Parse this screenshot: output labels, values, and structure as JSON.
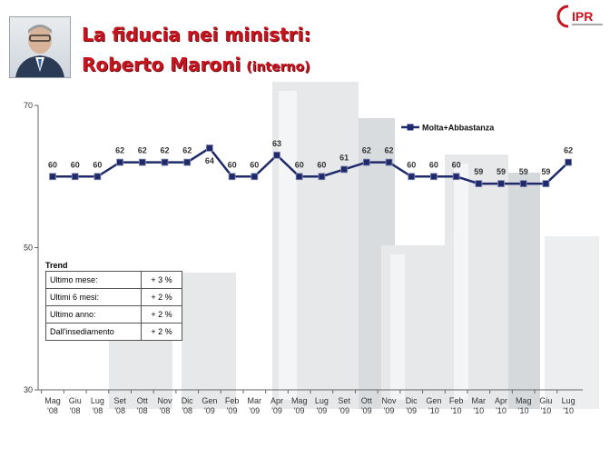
{
  "header": {
    "title_line1": "La fiducia nei ministri:",
    "title_line2": "Roberto Maroni",
    "title_role": "(interno)",
    "logo_text": "IPR"
  },
  "chart_data": {
    "type": "line",
    "title": "",
    "xlabel": "",
    "ylabel": "",
    "ylim": [
      30,
      70
    ],
    "yticks": [
      "70",
      "50",
      "30"
    ],
    "legend_position": "top-right",
    "series_color": "#1f2a6b",
    "categories": [
      [
        "Mag",
        "'08"
      ],
      [
        "Giu",
        "'08"
      ],
      [
        "Lug",
        "'08"
      ],
      [
        "Set",
        "'08"
      ],
      [
        "Ott",
        "'08"
      ],
      [
        "Nov",
        "'08"
      ],
      [
        "Dic",
        "'08"
      ],
      [
        "Gen",
        "'09"
      ],
      [
        "Feb",
        "'09"
      ],
      [
        "Mar",
        "'09"
      ],
      [
        "Apr",
        "'09"
      ],
      [
        "Mag",
        "'09"
      ],
      [
        "Lug",
        "'09"
      ],
      [
        "Set",
        "'09"
      ],
      [
        "Ott",
        "'09"
      ],
      [
        "Nov",
        "'09"
      ],
      [
        "Dic",
        "'09"
      ],
      [
        "Gen",
        "'10"
      ],
      [
        "Feb",
        "'10"
      ],
      [
        "Mar",
        "'10"
      ],
      [
        "Apr",
        "'10"
      ],
      [
        "Mag",
        "'10"
      ],
      [
        "Giu",
        "'10"
      ],
      [
        "Lug",
        "'10"
      ]
    ],
    "series": [
      {
        "name": "Molta+Abbastanza",
        "values": [
          60,
          60,
          60,
          62,
          62,
          62,
          62,
          64,
          60,
          60,
          63,
          60,
          60,
          61,
          62,
          62,
          60,
          60,
          60,
          59,
          59,
          59,
          59,
          62
        ]
      }
    ]
  },
  "trend": {
    "title": "Trend",
    "rows": [
      {
        "label": "Ultimo mese:",
        "value": "+ 3 %"
      },
      {
        "label": "Ultimi 6 mesi:",
        "value": "+ 2 %"
      },
      {
        "label": "Ultimo anno:",
        "value": "+ 2 %"
      },
      {
        "label": "Dall'insediamento",
        "value": "+ 2 %"
      }
    ]
  }
}
